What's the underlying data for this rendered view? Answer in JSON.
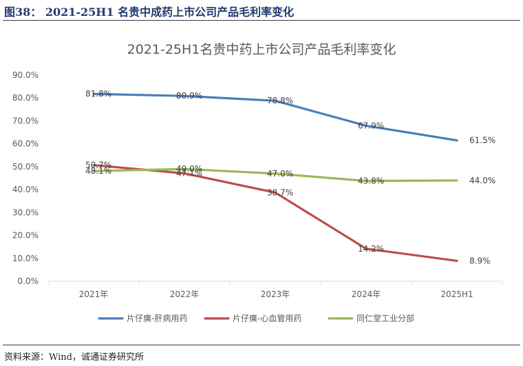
{
  "figure": {
    "title": "图38：  2021-25H1 名贵中成药上市公司产品毛利率变化",
    "source": "资料来源：Wind，诚通证券研究所"
  },
  "chart_data": {
    "type": "line",
    "title": "2021-25H1名贵中药上市公司产品毛利率变化",
    "categories": [
      "2021年",
      "2022年",
      "2023年",
      "2024年",
      "2025H1"
    ],
    "ylim": [
      0,
      90
    ],
    "yticks": [
      "0.0%",
      "10.0%",
      "20.0%",
      "30.0%",
      "40.0%",
      "50.0%",
      "60.0%",
      "70.0%",
      "80.0%",
      "90.0%"
    ],
    "grid": false,
    "legend_position": "bottom",
    "series": [
      {
        "name": "片仔癀-肝病用药",
        "color": "#4a7ebb",
        "values": [
          81.8,
          80.9,
          78.8,
          67.9,
          61.5
        ],
        "labels": [
          "81.8%",
          "80.9%",
          "78.8%",
          "67.9%",
          "61.5%"
        ]
      },
      {
        "name": "片仔癀-心血管用药",
        "color": "#be4b48",
        "values": [
          50.7,
          47.1,
          38.7,
          14.2,
          8.9
        ],
        "labels": [
          "50.7%",
          "47.1%",
          "38.7%",
          "14.2%",
          "8.9%"
        ]
      },
      {
        "name": "同仁堂工业分部",
        "color": "#98b954",
        "values": [
          48.1,
          49.0,
          47.0,
          43.8,
          44.0
        ],
        "labels": [
          "48.1%",
          "49.0%",
          "47.0%",
          "43.8%",
          "44.0%"
        ]
      }
    ]
  }
}
